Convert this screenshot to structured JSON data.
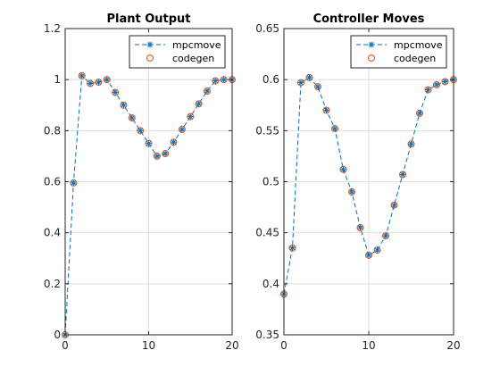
{
  "chart_data": [
    {
      "type": "line",
      "title": "Plant Output",
      "xlabel": "",
      "ylabel": "",
      "xlim": [
        0,
        20
      ],
      "ylim": [
        0,
        1.2
      ],
      "xticks": [
        0,
        10,
        20
      ],
      "yticks": [
        0,
        0.2,
        0.4,
        0.6,
        0.8,
        1,
        1.2
      ],
      "xtick_labels": [
        "0",
        "10",
        "20"
      ],
      "ytick_labels": [
        "0",
        "0.2",
        "0.4",
        "0.6",
        "0.8",
        "1",
        "1.2"
      ],
      "grid": true,
      "legend_position": "top-right",
      "x": [
        0,
        1,
        2,
        3,
        4,
        5,
        6,
        7,
        8,
        9,
        10,
        11,
        12,
        13,
        14,
        15,
        16,
        17,
        18,
        19,
        20
      ],
      "series": [
        {
          "name": "mpcmove",
          "style": "dashed-line-asterisk",
          "color": "#0072BD",
          "values": [
            0.0,
            0.595,
            1.015,
            0.985,
            0.99,
            1.0,
            0.95,
            0.9,
            0.85,
            0.8,
            0.75,
            0.7,
            0.71,
            0.755,
            0.805,
            0.855,
            0.905,
            0.955,
            0.995,
            1.0,
            1.0
          ]
        },
        {
          "name": "codegen",
          "style": "circle-markers",
          "color": "#D95319",
          "values": [
            0.0,
            0.595,
            1.015,
            0.985,
            0.99,
            1.0,
            0.95,
            0.9,
            0.85,
            0.8,
            0.75,
            0.7,
            0.71,
            0.755,
            0.805,
            0.855,
            0.905,
            0.955,
            0.995,
            1.0,
            1.0
          ]
        }
      ]
    },
    {
      "type": "line",
      "title": "Controller Moves",
      "xlabel": "",
      "ylabel": "",
      "xlim": [
        0,
        20
      ],
      "ylim": [
        0.35,
        0.65
      ],
      "xticks": [
        0,
        10,
        20
      ],
      "yticks": [
        0.35,
        0.4,
        0.45,
        0.5,
        0.55,
        0.6,
        0.65
      ],
      "xtick_labels": [
        "0",
        "10",
        "20"
      ],
      "ytick_labels": [
        "0.35",
        "0.4",
        "0.45",
        "0.5",
        "0.55",
        "0.6",
        "0.65"
      ],
      "grid": true,
      "legend_position": "top-right",
      "x": [
        0,
        1,
        2,
        3,
        4,
        5,
        6,
        7,
        8,
        9,
        10,
        11,
        12,
        13,
        14,
        15,
        16,
        17,
        18,
        19,
        20
      ],
      "series": [
        {
          "name": "mpcmove",
          "style": "dashed-line-asterisk",
          "color": "#0072BD",
          "values": [
            0.39,
            0.435,
            0.597,
            0.602,
            0.593,
            0.57,
            0.552,
            0.512,
            0.49,
            0.455,
            0.428,
            0.433,
            0.447,
            0.477,
            0.507,
            0.537,
            0.567,
            0.59,
            0.595,
            0.598,
            0.6
          ]
        },
        {
          "name": "codegen",
          "style": "circle-markers",
          "color": "#D95319",
          "values": [
            0.39,
            0.435,
            0.597,
            0.602,
            0.593,
            0.57,
            0.552,
            0.512,
            0.49,
            0.455,
            0.428,
            0.433,
            0.447,
            0.477,
            0.507,
            0.537,
            0.567,
            0.59,
            0.595,
            0.598,
            0.6
          ]
        }
      ]
    }
  ]
}
